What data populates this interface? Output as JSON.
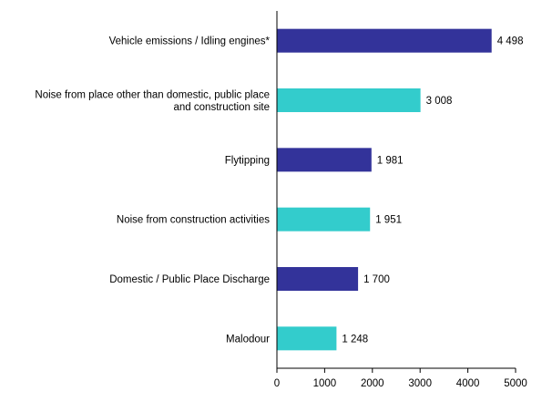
{
  "chart_data": {
    "type": "bar",
    "orientation": "horizontal",
    "title": "",
    "xlabel": "",
    "ylabel": "",
    "xlim": [
      0,
      5000
    ],
    "xticks": [
      0,
      1000,
      2000,
      3000,
      4000,
      5000
    ],
    "grid": false,
    "categories": [
      {
        "lines": [
          "Vehicle emissions / Idling engines*"
        ]
      },
      {
        "lines": [
          "Noise from place other than domestic, public place",
          "and construction site"
        ]
      },
      {
        "lines": [
          "Flytipping"
        ]
      },
      {
        "lines": [
          "Noise from construction activities"
        ]
      },
      {
        "lines": [
          "Domestic / Public Place Discharge"
        ]
      },
      {
        "lines": [
          "Malodour"
        ]
      }
    ],
    "values": [
      4498,
      3008,
      1981,
      1951,
      1700,
      1248
    ],
    "value_labels": [
      "4 498",
      "3 008",
      "1 981",
      "1 951",
      "1 700",
      "1 248"
    ],
    "colors": [
      "#33339a",
      "#33cccc",
      "#33339a",
      "#33cccc",
      "#33339a",
      "#33cccc"
    ]
  }
}
